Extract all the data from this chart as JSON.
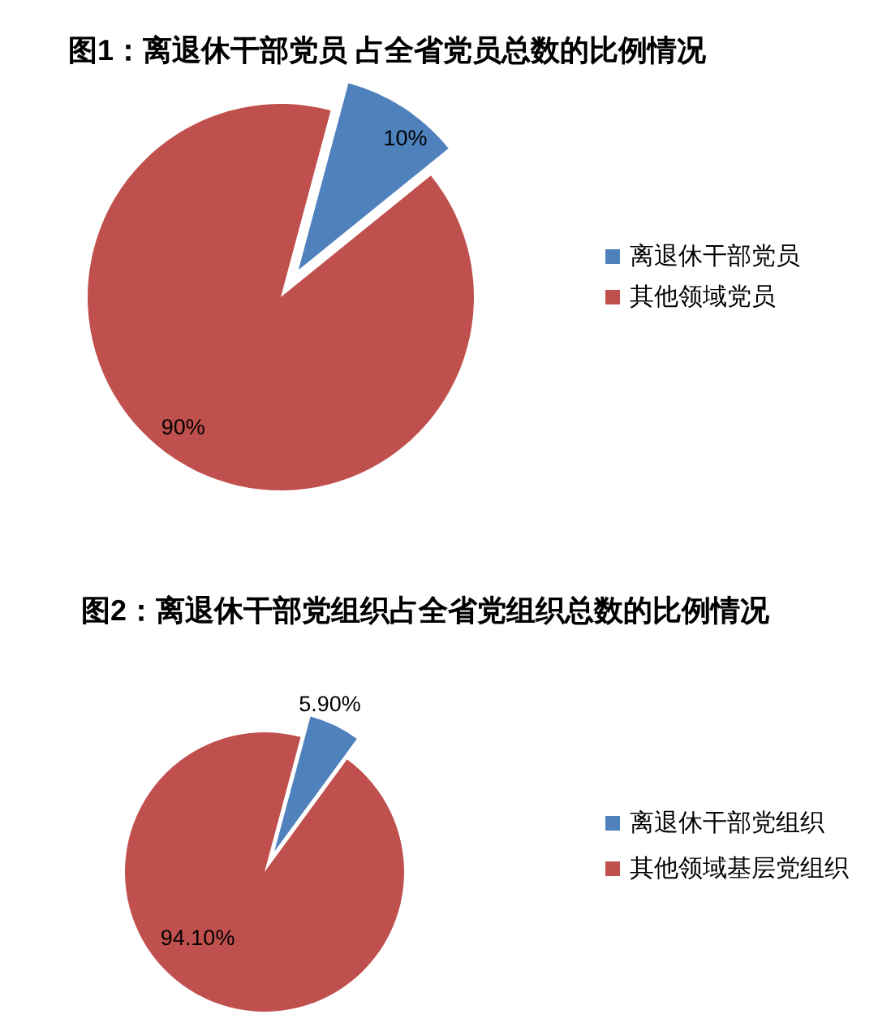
{
  "chart_data": [
    {
      "type": "pie",
      "title": "图1：离退休干部党员 占全省党员总数的比例情况",
      "categories": [
        "离退休干部党员",
        "其他领域党员"
      ],
      "values": [
        10,
        90
      ],
      "colors": [
        "#4f81bd",
        "#c0504d"
      ],
      "value_labels": [
        "10%",
        "90%"
      ],
      "legend": "right"
    },
    {
      "type": "pie",
      "title": "图2：离退休干部党组织占全省党组织总数的比例情况",
      "categories": [
        "离退休干部党组织",
        "其他领域基层党组织"
      ],
      "values": [
        5.9,
        94.1
      ],
      "colors": [
        "#4f81bd",
        "#c0504d"
      ],
      "value_labels": [
        "5.90%",
        "94.10%"
      ],
      "legend": "right"
    }
  ]
}
